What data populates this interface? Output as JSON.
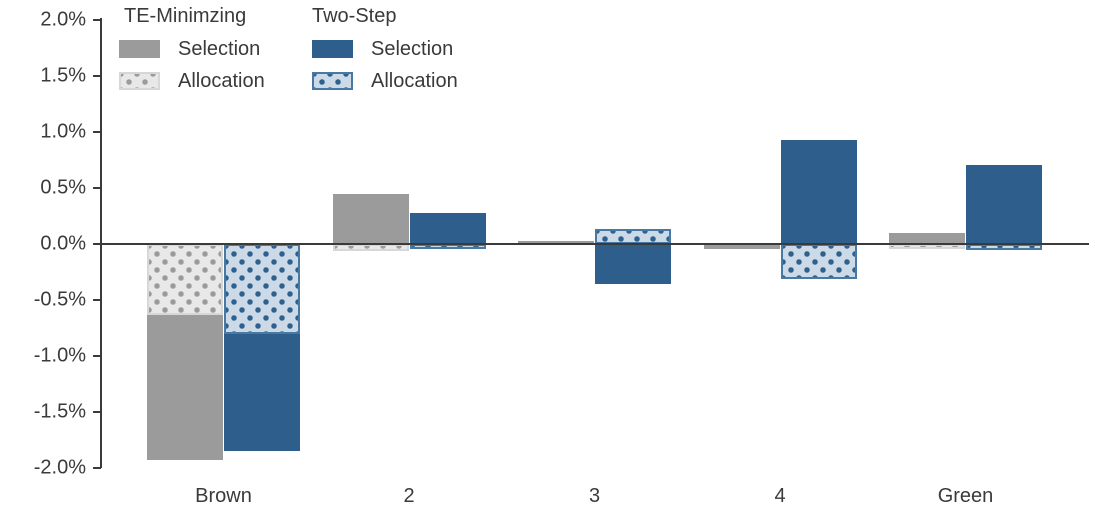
{
  "chart_data": {
    "type": "bar",
    "title": "",
    "categories": [
      "Brown",
      "2",
      "3",
      "4",
      "Green"
    ],
    "unit": "%",
    "ylim": [
      -2.0,
      2.0
    ],
    "grid": false,
    "zero_line": true,
    "legend_position": "top-left",
    "yticks": [
      {
        "value": 2.0,
        "label": "2.0%"
      },
      {
        "value": 1.5,
        "label": "1.5%"
      },
      {
        "value": 1.0,
        "label": "1.0%"
      },
      {
        "value": 0.5,
        "label": "0.5%"
      },
      {
        "value": 0.0,
        "label": "0.0%"
      },
      {
        "value": -0.5,
        "label": "-0.5%"
      },
      {
        "value": -1.0,
        "label": "-1.0%"
      },
      {
        "value": -1.5,
        "label": "-1.5%"
      },
      {
        "value": -2.0,
        "label": "-2.0%"
      }
    ],
    "families": [
      {
        "id": "te-minimzing",
        "title": "TE-Minimzing",
        "selection": {
          "label": "Selection",
          "color": "#9b9b9b",
          "values": [
            -1.3,
            0.45,
            0.03,
            -0.04,
            0.1
          ]
        },
        "allocation": {
          "label": "Allocation",
          "fill": "#e8e8e8",
          "dot_color": "#9b9b9b",
          "border_color": "#d7d7d7",
          "values": [
            -0.63,
            -0.06,
            0.0,
            0.0,
            -0.04
          ]
        }
      },
      {
        "id": "two-step",
        "title": "Two-Step",
        "selection": {
          "label": "Selection",
          "color": "#2e5f8c",
          "values": [
            -1.05,
            0.28,
            -0.36,
            0.93,
            0.71
          ]
        },
        "allocation": {
          "label": "Allocation",
          "fill": "#ccd9e7",
          "dot_color": "#2e6090",
          "border_color": "#4878a4",
          "values": [
            -0.8,
            -0.04,
            0.13,
            -0.31,
            -0.05
          ]
        }
      }
    ],
    "colors": {
      "axis": "#3a3a3a",
      "text": "#3a3a3a",
      "te_selection": "#9b9b9b",
      "te_allocation_fill": "#e8e8e8",
      "ts_selection": "#2e5f8c",
      "ts_allocation_fill": "#ccd9e7"
    }
  }
}
